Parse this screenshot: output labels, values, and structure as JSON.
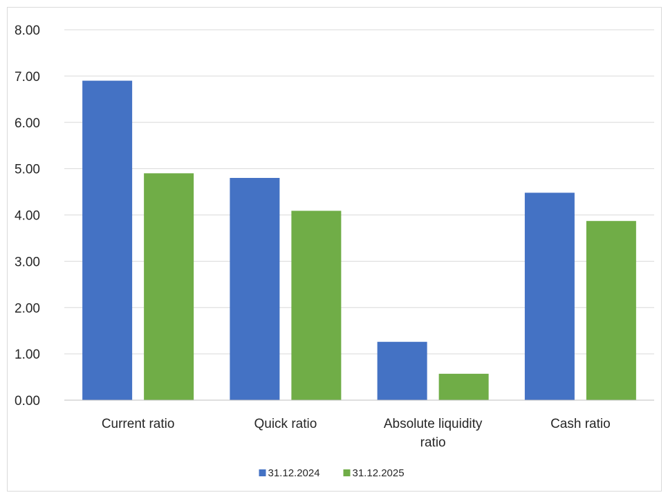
{
  "chart_data": {
    "type": "bar",
    "categories": [
      "Current ratio",
      "Quick ratio",
      "Absolute liquidity ratio",
      "Cash ratio"
    ],
    "series": [
      {
        "name": "31.12.2024",
        "color": "#4472c4",
        "values": [
          6.9,
          4.8,
          1.26,
          4.48
        ]
      },
      {
        "name": "31.12.2025",
        "color": "#70ad47",
        "values": [
          4.9,
          4.09,
          0.57,
          3.87
        ]
      }
    ],
    "yticks": [
      "0.00",
      "1.00",
      "2.00",
      "3.00",
      "4.00",
      "5.00",
      "6.00",
      "7.00",
      "8.00"
    ],
    "ylim": [
      0,
      8
    ],
    "grid": true,
    "legend": "bottom",
    "title": "",
    "xlabel": "",
    "ylabel": ""
  }
}
